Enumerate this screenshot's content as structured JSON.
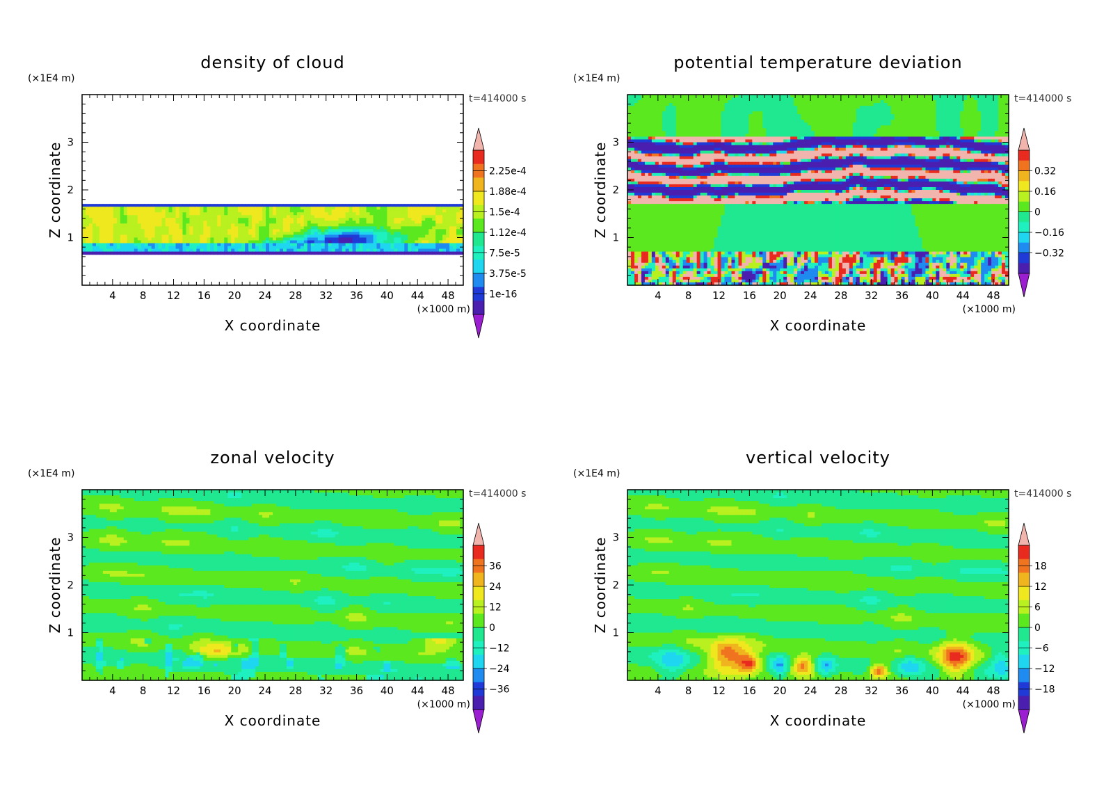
{
  "chart_data": [
    {
      "type": "heatmap",
      "title": "density of cloud",
      "xlabel": "X coordinate",
      "ylabel": "Z coordinate",
      "x_unit": "(×1000 m)",
      "y_unit": "(×1E4 m)",
      "time_label": "t=414000 s",
      "xlim": [
        0,
        50
      ],
      "ylim": [
        0,
        4
      ],
      "x_ticks": [
        "4",
        "8",
        "12",
        "16",
        "20",
        "24",
        "28",
        "32",
        "36",
        "40",
        "44",
        "48"
      ],
      "y_ticks": [
        "1",
        "2",
        "3"
      ],
      "colorbar_labels": [
        "2.25e-4",
        "1.88e-4",
        "1.5e-4",
        "1.12e-4",
        "7.5e-5",
        "3.75e-5",
        "1e-16"
      ],
      "field_pattern": "cloud"
    },
    {
      "type": "heatmap",
      "title": "potential temperature deviation",
      "xlabel": "X coordinate",
      "ylabel": "Z coordinate",
      "x_unit": "(×1000 m)",
      "y_unit": "(×1E4 m)",
      "time_label": "t=414000 s",
      "xlim": [
        0,
        50
      ],
      "ylim": [
        0,
        4
      ],
      "x_ticks": [
        "4",
        "8",
        "12",
        "16",
        "20",
        "24",
        "28",
        "32",
        "36",
        "40",
        "44",
        "48"
      ],
      "y_ticks": [
        "1",
        "2",
        "3"
      ],
      "colorbar_labels": [
        "0.32",
        "0.16",
        "0",
        "−0.16",
        "−0.32"
      ],
      "field_pattern": "theta"
    },
    {
      "type": "heatmap",
      "title": "zonal velocity",
      "xlabel": "X coordinate",
      "ylabel": "Z coordinate",
      "x_unit": "(×1000 m)",
      "y_unit": "(×1E4 m)",
      "time_label": "t=414000 s",
      "xlim": [
        0,
        50
      ],
      "ylim": [
        0,
        4
      ],
      "x_ticks": [
        "4",
        "8",
        "12",
        "16",
        "20",
        "24",
        "28",
        "32",
        "36",
        "40",
        "44",
        "48"
      ],
      "y_ticks": [
        "1",
        "2",
        "3"
      ],
      "colorbar_labels": [
        "36",
        "24",
        "12",
        "0",
        "−12",
        "−24",
        "−36"
      ],
      "field_pattern": "zonal"
    },
    {
      "type": "heatmap",
      "title": "vertical velocity",
      "xlabel": "X coordinate",
      "ylabel": "Z coordinate",
      "x_unit": "(×1000 m)",
      "y_unit": "(×1E4 m)",
      "time_label": "t=414000 s",
      "xlim": [
        0,
        50
      ],
      "ylim": [
        0,
        4
      ],
      "x_ticks": [
        "4",
        "8",
        "12",
        "16",
        "20",
        "24",
        "28",
        "32",
        "36",
        "40",
        "44",
        "48"
      ],
      "y_ticks": [
        "1",
        "2",
        "3"
      ],
      "colorbar_labels": [
        "18",
        "12",
        "6",
        "0",
        "−6",
        "−12",
        "−18"
      ],
      "field_pattern": "vertical"
    }
  ],
  "colorbar_colors": [
    "#9b1fd1",
    "#4a1fb0",
    "#1f3ad6",
    "#1f8af0",
    "#1fd6f0",
    "#1ff0c0",
    "#1fe890",
    "#5ce81f",
    "#b9f01f",
    "#f0e81f",
    "#f0b41f",
    "#f0741f",
    "#e82a1f",
    "#f2b5ae"
  ]
}
